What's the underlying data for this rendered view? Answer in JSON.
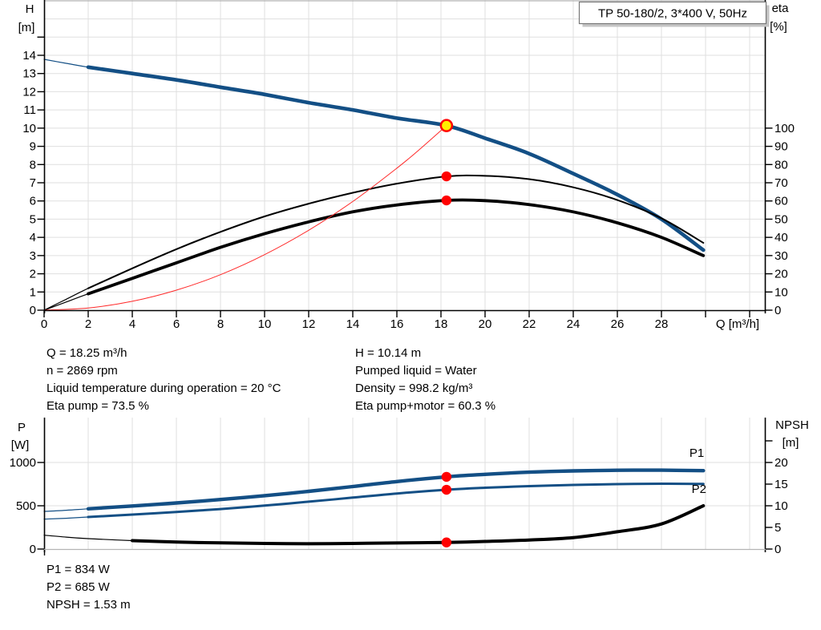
{
  "title_box": {
    "label": "TP 50-180/2, 3*400 V, 50Hz"
  },
  "top_chart": {
    "left_axis": {
      "title": "H",
      "unit": "[m]"
    },
    "right_axis": {
      "title": "eta",
      "unit": "[%]"
    },
    "x_axis": {
      "label": "Q [m³/h]"
    }
  },
  "bottom_chart": {
    "left_axis": {
      "title": "P",
      "unit": "[W]"
    },
    "right_axis": {
      "title": "NPSH",
      "unit": "[m]"
    }
  },
  "annotations": {
    "duty_left": [
      "Q = 18.25 m³/h",
      "n = 2869 rpm",
      "Liquid temperature during operation = 20 °C",
      "Eta pump = 73.5 %"
    ],
    "duty_right": [
      "H = 10.14 m",
      "Pumped liquid = Water",
      "Density = 998.2 kg/m³",
      "Eta pump+motor = 60.3 %"
    ],
    "power": [
      "P1 = 834 W",
      "P2 = 685 W",
      "NPSH = 1.53 m"
    ]
  },
  "chart_data": [
    {
      "id": "head-efficiency",
      "type": "line",
      "title": "TP 50-180/2, 3*400 V, 50Hz",
      "xlabel": "Q [m³/h]",
      "xlim": [
        0,
        32.7
      ],
      "x_ticks_labeled": [
        0,
        2,
        4,
        6,
        8,
        10,
        12,
        14,
        16,
        18,
        20,
        22,
        24,
        26,
        28
      ],
      "x_ticks_unlabeled": [
        30,
        32
      ],
      "y_left": {
        "label": "H [m]",
        "ticks": [
          0,
          1,
          2,
          3,
          4,
          5,
          6,
          7,
          8,
          9,
          10,
          11,
          12,
          13,
          14
        ],
        "unlabeled_ticks": [
          15
        ],
        "grid_extra": [
          15,
          16
        ],
        "lim": [
          0,
          17
        ]
      },
      "y_right": {
        "label": "eta [%]",
        "ticks": [
          0,
          10,
          20,
          30,
          40,
          50,
          60,
          70,
          80,
          90,
          100
        ],
        "unlabeled_ticks": [],
        "lim": [
          0,
          170
        ]
      },
      "series": [
        {
          "name": "pump-head-curve",
          "axis": "left",
          "color": "#134f85",
          "width": 4.6,
          "thin_from_q": 1.7,
          "x": [
            0,
            1,
            2,
            4,
            6,
            8,
            10,
            12,
            14,
            16,
            18.25,
            20,
            22,
            24,
            26,
            28,
            29.9
          ],
          "y": [
            13.78,
            13.56,
            13.35,
            13.0,
            12.65,
            12.25,
            11.85,
            11.4,
            11.0,
            10.55,
            10.14,
            9.45,
            8.6,
            7.5,
            6.35,
            5.0,
            3.3
          ]
        },
        {
          "name": "eta-pump-curve",
          "axis": "right",
          "color": "#000000",
          "width": 2,
          "thin_from_q": 1.7,
          "x": [
            0,
            1,
            2,
            4,
            6,
            8,
            10,
            12,
            14,
            16,
            18.25,
            20,
            22,
            24,
            26,
            28,
            29.9
          ],
          "y": [
            0,
            6,
            12,
            23,
            33.5,
            43,
            51.5,
            58.5,
            64.5,
            69.5,
            73.5,
            73.8,
            72,
            67.5,
            60.5,
            50.5,
            37
          ]
        },
        {
          "name": "eta-pump-motor-curve",
          "axis": "right",
          "color": "#000000",
          "width": 3.8,
          "thin_from_q": 1.7,
          "x": [
            0,
            1,
            2,
            4,
            6,
            8,
            10,
            12,
            14,
            16,
            18.25,
            20,
            22,
            24,
            26,
            28,
            29.9
          ],
          "y": [
            0,
            4.5,
            9,
            17.5,
            26,
            34.5,
            42,
            48.5,
            54,
            57.8,
            60.3,
            60.2,
            58,
            54,
            48,
            40,
            30
          ]
        },
        {
          "name": "system-curve",
          "axis": "left",
          "color": "#ff2a2a",
          "width": 1,
          "x": [
            0,
            2,
            4,
            6,
            8,
            10,
            12,
            14,
            16,
            17,
            18.25
          ],
          "y": [
            0,
            0.12,
            0.49,
            1.1,
            1.95,
            3.05,
            4.39,
            5.97,
            7.8,
            8.8,
            10.14
          ]
        }
      ],
      "markers": [
        {
          "name": "duty-point",
          "axis": "left",
          "q": 18.25,
          "v": 10.14,
          "r": 7,
          "fill": "#ffee00",
          "stroke": "#ff0000",
          "stroke_width": 2.5
        },
        {
          "name": "eta-pump-point",
          "axis": "right",
          "q": 18.25,
          "v": 73.5,
          "r": 6.2,
          "fill": "#ff0000"
        },
        {
          "name": "eta-pump-motor-point",
          "axis": "right",
          "q": 18.25,
          "v": 60.3,
          "r": 6.2,
          "fill": "#ff0000"
        }
      ]
    },
    {
      "id": "power-npsh",
      "type": "line",
      "xlabel": "Q [m³/h]",
      "xlim": [
        0,
        32.7
      ],
      "x_ticks_labeled": [],
      "x_ticks_unlabeled": [],
      "y_left": {
        "label": "P [W]",
        "ticks": [
          0,
          500,
          1000
        ],
        "unlabeled_ticks": [],
        "grid_extra": [],
        "lim": [
          0,
          1500
        ]
      },
      "y_right": {
        "label": "NPSH [m]",
        "ticks": [
          0,
          5,
          10,
          15,
          20
        ],
        "unlabeled_ticks": [
          25
        ],
        "lim": [
          0,
          30
        ]
      },
      "series": [
        {
          "name": "p1-curve",
          "axis": "left",
          "color": "#134f85",
          "width": 4.4,
          "thin_from_q": 1.7,
          "label": "P1",
          "label_at": [
            29.6,
            1065
          ],
          "x": [
            0,
            1,
            2,
            4,
            6,
            8,
            10,
            12,
            14,
            16,
            18.25,
            20,
            22,
            24,
            26,
            28,
            29.9
          ],
          "y": [
            435,
            448,
            465,
            497,
            532,
            572,
            617,
            667,
            722,
            780,
            834,
            863,
            888,
            903,
            910,
            911,
            906
          ]
        },
        {
          "name": "p2-curve",
          "axis": "left",
          "color": "#134f85",
          "width": 3,
          "thin_from_q": 1.7,
          "label": "P2",
          "label_at": [
            29.7,
            648
          ],
          "x": [
            0,
            1,
            2,
            4,
            6,
            8,
            10,
            12,
            14,
            16,
            18.25,
            20,
            22,
            24,
            26,
            28,
            29.9
          ],
          "y": [
            345,
            356,
            370,
            398,
            428,
            462,
            502,
            547,
            594,
            642,
            685,
            708,
            727,
            741,
            750,
            755,
            752
          ]
        },
        {
          "name": "npsh-curve",
          "axis": "right",
          "color": "#000000",
          "width": 4,
          "thin_from_q": 2.6,
          "x": [
            0,
            1,
            2,
            4,
            6,
            8,
            10,
            12,
            14,
            16,
            18.25,
            20,
            22,
            24,
            26,
            28,
            29.9
          ],
          "y": [
            3.2,
            2.75,
            2.4,
            1.95,
            1.62,
            1.42,
            1.3,
            1.22,
            1.3,
            1.4,
            1.53,
            1.75,
            2.1,
            2.65,
            4.0,
            5.8,
            10.0
          ]
        }
      ],
      "markers": [
        {
          "name": "p1-point",
          "axis": "left",
          "q": 18.25,
          "v": 834,
          "r": 6.2,
          "fill": "#ff0000"
        },
        {
          "name": "p2-point",
          "axis": "left",
          "q": 18.25,
          "v": 685,
          "r": 6.2,
          "fill": "#ff0000"
        },
        {
          "name": "npsh-point",
          "axis": "right",
          "q": 18.25,
          "v": 1.53,
          "r": 6.2,
          "fill": "#ff0000"
        }
      ]
    }
  ]
}
